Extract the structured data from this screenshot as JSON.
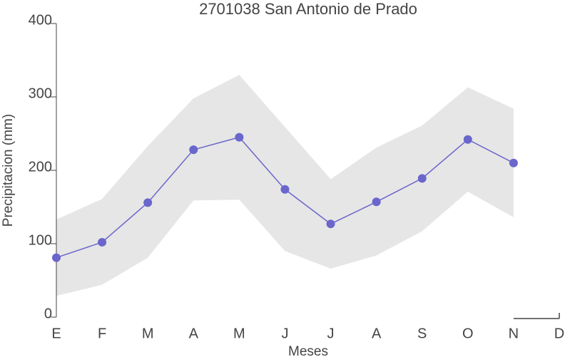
{
  "chart_data": {
    "type": "line",
    "title": "2701038 San Antonio de Prado",
    "xlabel": "Meses",
    "ylabel": "Precipitacion (mm)",
    "categories": [
      "E",
      "F",
      "M",
      "A",
      "M",
      "J",
      "J",
      "A",
      "S",
      "O",
      "N",
      "D"
    ],
    "series": [
      {
        "color": "#6a66cc",
        "values": [
          81,
          102,
          156,
          228,
          245,
          174,
          127,
          157,
          189,
          242,
          210,
          null
        ]
      }
    ],
    "band": {
      "color": "#e6e6e6",
      "upper": [
        133,
        161,
        233,
        298,
        330,
        259,
        188,
        231,
        261,
        313,
        284,
        null
      ],
      "lower": [
        29,
        44,
        81,
        159,
        160,
        90,
        66,
        84,
        117,
        171,
        136,
        null
      ]
    },
    "ylim": [
      0,
      400
    ],
    "yticks": [
      0,
      100,
      200,
      300,
      400
    ]
  }
}
